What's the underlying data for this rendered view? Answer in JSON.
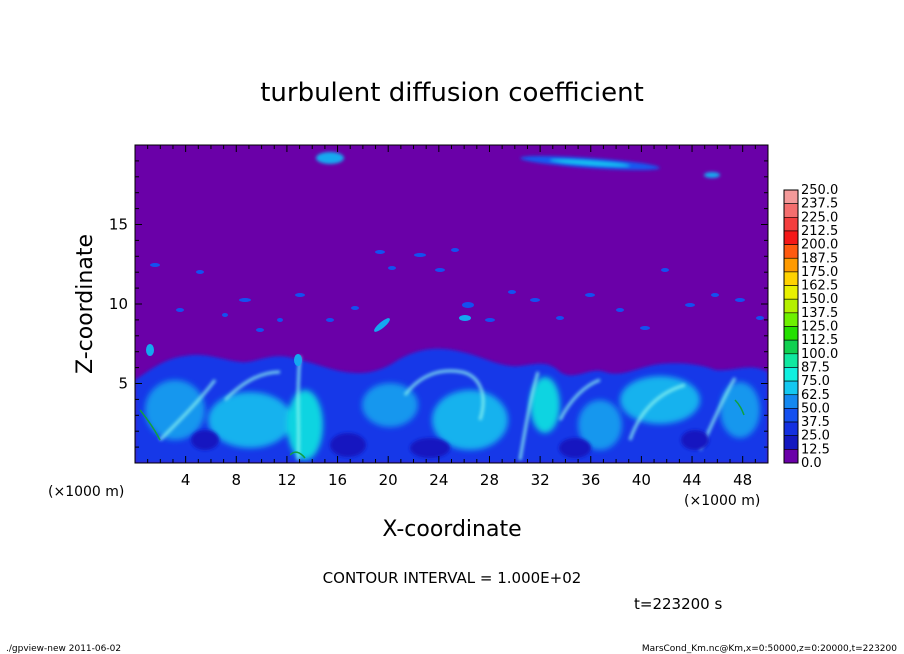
{
  "chart_data": {
    "type": "heatmap",
    "title": "turbulent diffusion coefficient",
    "xlabel": "X-coordinate",
    "ylabel": "Z-coordinate",
    "x_unit": "(×1000 m)",
    "z_unit": "(×1000 m)",
    "xlim": [
      0,
      50
    ],
    "ylim": [
      0,
      20
    ],
    "x_ticks": [
      4,
      8,
      12,
      16,
      20,
      24,
      28,
      32,
      36,
      40,
      44,
      48
    ],
    "y_ticks": [
      5,
      10,
      15
    ],
    "colorbar": {
      "levels": [
        "250.0",
        "237.5",
        "225.0",
        "212.5",
        "200.0",
        "187.5",
        "175.0",
        "162.5",
        "150.0",
        "137.5",
        "125.0",
        "112.5",
        "100.0",
        "87.5",
        "75.0",
        "62.5",
        "50.0",
        "37.5",
        "25.0",
        "12.5",
        "0.0"
      ],
      "colors": [
        "#f49a9a",
        "#f46e6e",
        "#f43e3e",
        "#f41818",
        "#ff5a10",
        "#ff9a00",
        "#ffd200",
        "#e8f000",
        "#b4f000",
        "#6ef000",
        "#24e000",
        "#10d050",
        "#10e8a0",
        "#10f0e0",
        "#14c8f0",
        "#1488f0",
        "#1450f0",
        "#1430e0",
        "#1418c0",
        "#6a00a8"
      ]
    },
    "background_color": "#6a00a8"
  },
  "contour_interval_label": "CONTOUR INTERVAL = 1.000E+02",
  "time_label": "t=223200 s",
  "footer_left": "./gpview-new  2011-06-02",
  "footer_right": "MarsCond_Km.nc@Km,x=0:50000,z=0:20000,t=223200"
}
